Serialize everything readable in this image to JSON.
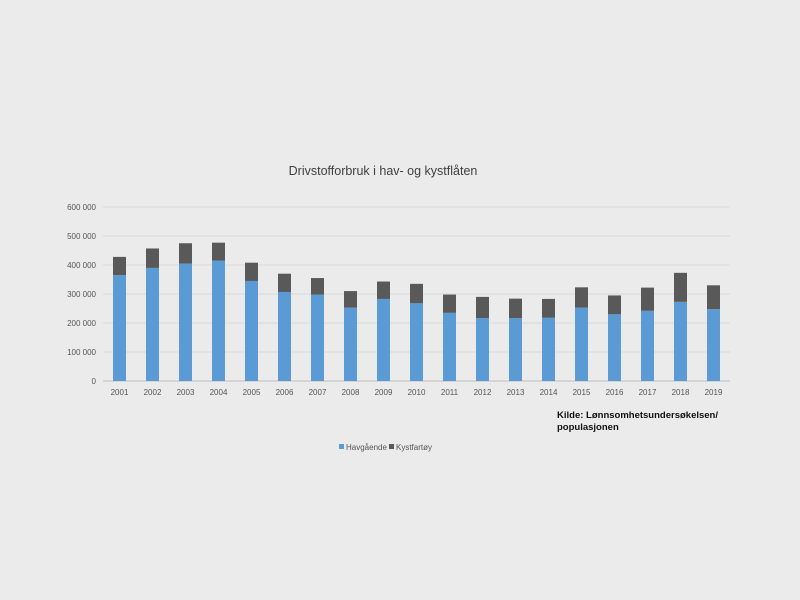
{
  "chart_data": {
    "type": "bar",
    "stacked": true,
    "title": "Drivstofforbruk i hav- og kystflåten",
    "xlabel": "",
    "ylabel": "",
    "ylim": [
      0,
      600000
    ],
    "yticks": [
      0,
      100000,
      200000,
      300000,
      400000,
      500000,
      600000
    ],
    "ytick_labels": [
      "0",
      "100 000",
      "200 000",
      "300 000",
      "400 000",
      "500 000",
      "600 000"
    ],
    "grid": true,
    "legend_position": "bottom",
    "categories": [
      "2001",
      "2002",
      "2003",
      "2004",
      "2005",
      "2006",
      "2007",
      "2008",
      "2009",
      "2010",
      "2011",
      "2012",
      "2013",
      "2014",
      "2015",
      "2016",
      "2017",
      "2018",
      "2019"
    ],
    "series": [
      {
        "name": "Havgående",
        "color": "#5b9bd5",
        "values": [
          365000,
          390000,
          405000,
          415000,
          345000,
          307000,
          298000,
          253000,
          283000,
          268000,
          235000,
          217000,
          217000,
          218000,
          253000,
          230000,
          242000,
          273000,
          248000
        ]
      },
      {
        "name": "Kystfartøy",
        "color": "#595959",
        "values": [
          63000,
          67000,
          70000,
          62000,
          63000,
          63000,
          57000,
          57000,
          60000,
          67000,
          63000,
          73000,
          67000,
          65000,
          70000,
          65000,
          80000,
          100000,
          82000
        ]
      }
    ]
  },
  "source": {
    "line1": "Kilde: Lønnsomhetsundersøkelsen/",
    "line2": "populasjonen"
  }
}
